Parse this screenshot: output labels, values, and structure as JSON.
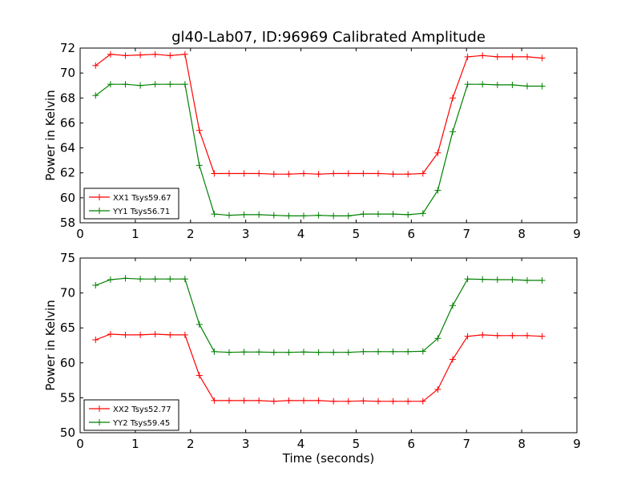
{
  "chart_data": [
    {
      "type": "line",
      "title": "gl40-Lab07, ID:96969 Calibrated Amplitude",
      "xlabel": "",
      "ylabel": "Power in Kelvin",
      "xlim": [
        0,
        9
      ],
      "ylim": [
        58,
        72
      ],
      "xticks": [
        0,
        1,
        2,
        3,
        4,
        5,
        6,
        7,
        8,
        9
      ],
      "yticks": [
        58,
        60,
        62,
        64,
        66,
        68,
        70,
        72
      ],
      "legend_position": "lower-left",
      "x": [
        0.28,
        0.55,
        0.82,
        1.09,
        1.36,
        1.63,
        1.9,
        2.16,
        2.43,
        2.7,
        2.97,
        3.24,
        3.51,
        3.78,
        4.05,
        4.32,
        4.59,
        4.86,
        5.13,
        5.4,
        5.67,
        5.94,
        6.21,
        6.48,
        6.75,
        7.02,
        7.29,
        7.56,
        7.83,
        8.1,
        8.37
      ],
      "series": [
        {
          "name": "XX1 Tsys59.67",
          "color": "#ff0000",
          "values": [
            70.6,
            71.5,
            71.4,
            71.45,
            71.5,
            71.4,
            71.5,
            65.4,
            61.95,
            61.95,
            61.95,
            61.95,
            61.9,
            61.9,
            61.95,
            61.9,
            61.95,
            61.95,
            61.95,
            61.95,
            61.9,
            61.9,
            61.95,
            63.6,
            68.0,
            71.3,
            71.4,
            71.3,
            71.3,
            71.3,
            71.2
          ]
        },
        {
          "name": "YY1 Tsys56.71",
          "color": "#008000",
          "values": [
            68.2,
            69.1,
            69.1,
            69.0,
            69.1,
            69.1,
            69.1,
            62.6,
            58.7,
            58.6,
            58.65,
            58.65,
            58.6,
            58.55,
            58.55,
            58.6,
            58.55,
            58.55,
            58.7,
            58.7,
            58.7,
            58.65,
            58.75,
            60.6,
            65.3,
            69.1,
            69.1,
            69.05,
            69.05,
            68.95,
            68.95
          ]
        }
      ]
    },
    {
      "type": "line",
      "title": "",
      "xlabel": "Time (seconds)",
      "ylabel": "Power in Kelvin",
      "xlim": [
        0,
        9
      ],
      "ylim": [
        50,
        75
      ],
      "xticks": [
        0,
        1,
        2,
        3,
        4,
        5,
        6,
        7,
        8,
        9
      ],
      "yticks": [
        50,
        55,
        60,
        65,
        70,
        75
      ],
      "legend_position": "lower-left",
      "x": [
        0.28,
        0.55,
        0.82,
        1.09,
        1.36,
        1.63,
        1.9,
        2.16,
        2.43,
        2.7,
        2.97,
        3.24,
        3.51,
        3.78,
        4.05,
        4.32,
        4.59,
        4.86,
        5.13,
        5.4,
        5.67,
        5.94,
        6.21,
        6.48,
        6.75,
        7.02,
        7.29,
        7.56,
        7.83,
        8.1,
        8.37
      ],
      "series": [
        {
          "name": "XX2 Tsys52.77",
          "color": "#ff0000",
          "values": [
            63.3,
            64.1,
            64.0,
            64.0,
            64.1,
            64.0,
            64.0,
            58.2,
            54.6,
            54.6,
            54.6,
            54.6,
            54.5,
            54.6,
            54.6,
            54.6,
            54.5,
            54.5,
            54.55,
            54.5,
            54.5,
            54.5,
            54.5,
            56.2,
            60.5,
            63.8,
            64.0,
            63.9,
            63.9,
            63.9,
            63.8
          ]
        },
        {
          "name": "YY2 Tsys59.45",
          "color": "#008000",
          "values": [
            71.1,
            71.9,
            72.1,
            72.0,
            72.0,
            72.0,
            72.0,
            65.5,
            61.6,
            61.5,
            61.55,
            61.55,
            61.5,
            61.5,
            61.55,
            61.5,
            61.5,
            61.5,
            61.6,
            61.6,
            61.6,
            61.6,
            61.65,
            63.5,
            68.2,
            72.0,
            71.95,
            71.9,
            71.9,
            71.8,
            71.8
          ]
        }
      ]
    }
  ]
}
